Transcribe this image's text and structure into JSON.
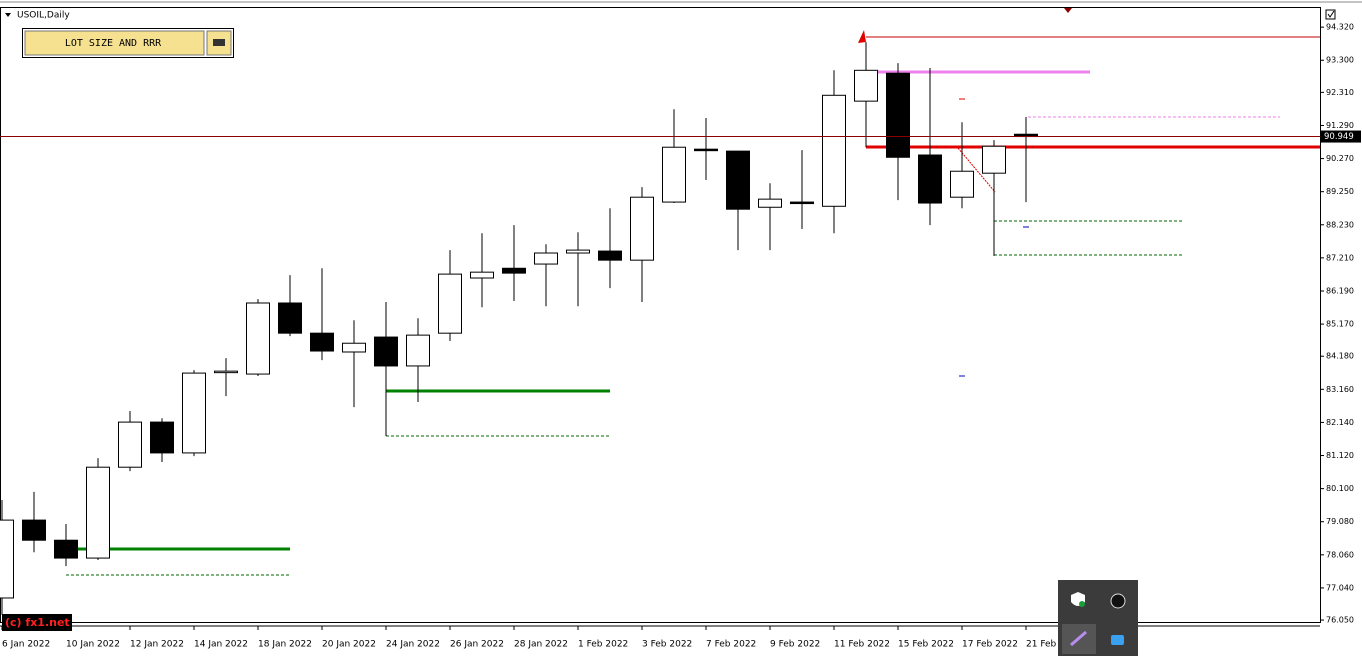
{
  "window": {
    "symbol_label": "USOIL,Daily",
    "button": "LOT SIZE AND RRR",
    "watermark": "(c) fx1.net"
  },
  "chart_data": {
    "type": "candlestick",
    "categories": [
      "6 Jan 2022",
      null,
      "10 Jan 2022",
      null,
      "12 Jan 2022",
      null,
      "14 Jan 2022",
      null,
      "18 Jan 2022",
      null,
      "20 Jan 2022",
      null,
      "24 Jan 2022",
      null,
      "26 Jan 2022",
      null,
      "28 Jan 2022",
      null,
      "1 Feb 2022",
      null,
      "3 Feb 2022",
      null,
      "7 Feb 2022",
      null,
      "9 Feb 2022",
      null,
      "11 Feb 2022",
      null,
      "15 Feb 2022",
      null,
      "17 Feb 2022",
      null,
      "21 Feb"
    ],
    "open": [
      76.73,
      79.13,
      78.51,
      77.96,
      80.76,
      82.15,
      81.2,
      83.69,
      83.63,
      85.82,
      84.89,
      84.31,
      84.77,
      83.88,
      84.89,
      86.59,
      86.89,
      87.02,
      87.36,
      87.42,
      87.14,
      88.93,
      90.56,
      90.5,
      88.77,
      88.93,
      88.8,
      92.04,
      92.9,
      90.38,
      89.08,
      89.82,
      91.02
    ],
    "high": [
      79.75,
      80.0,
      79.01,
      81.04,
      82.49,
      82.27,
      83.75,
      84.12,
      85.94,
      86.68,
      86.89,
      85.29,
      85.85,
      85.35,
      87.45,
      87.97,
      88.22,
      87.63,
      88.0,
      88.74,
      89.39,
      91.79,
      91.52,
      90.5,
      89.51,
      90.53,
      92.99,
      93.86,
      93.21,
      93.06,
      91.39,
      90.84,
      91.55
    ],
    "low": [
      76.21,
      78.14,
      77.71,
      77.9,
      80.64,
      80.92,
      81.1,
      82.95,
      83.57,
      84.8,
      84.06,
      82.61,
      81.72,
      82.77,
      84.65,
      85.69,
      85.88,
      85.72,
      85.72,
      86.28,
      85.85,
      88.9,
      89.61,
      87.45,
      87.45,
      88.1,
      87.97,
      90.62,
      88.99,
      88.22,
      88.74,
      87.27,
      88.93
    ],
    "close": [
      79.13,
      78.51,
      77.96,
      80.76,
      82.15,
      81.2,
      83.66,
      83.72,
      85.82,
      84.89,
      84.34,
      84.58,
      83.88,
      84.83,
      86.71,
      86.77,
      86.74,
      87.36,
      87.45,
      87.14,
      89.08,
      90.62,
      90.53,
      88.71,
      89.02,
      88.9,
      92.22,
      92.99,
      90.31,
      88.9,
      89.88,
      90.65,
      90.949
    ],
    "bull_color": "#ffffff",
    "bear_color": "#000000",
    "current_price": 90.949,
    "ylim": [
      75.99,
      94.91
    ],
    "yticks": [
      {
        "value": 94.32,
        "label": "94.320"
      },
      {
        "value": 93.3,
        "label": "93.300"
      },
      {
        "value": 92.31,
        "label": "92.310"
      },
      {
        "value": 91.29,
        "label": "91.290"
      },
      {
        "value": 90.27,
        "label": "90.270"
      },
      {
        "value": 89.25,
        "label": "89.250"
      },
      {
        "value": 88.23,
        "label": "88.230"
      },
      {
        "value": 87.21,
        "label": "87.210"
      },
      {
        "value": 86.19,
        "label": "86.190"
      },
      {
        "value": 85.17,
        "label": "85.170"
      },
      {
        "value": 84.18,
        "label": "84.180"
      },
      {
        "value": 83.16,
        "label": "83.160"
      },
      {
        "value": 82.14,
        "label": "82.140"
      },
      {
        "value": 81.12,
        "label": "81.120"
      },
      {
        "value": 80.1,
        "label": "80.100"
      },
      {
        "value": 79.08,
        "label": "79.080"
      },
      {
        "value": 78.06,
        "label": "78.060"
      },
      {
        "value": 77.04,
        "label": "77.040"
      },
      {
        "value": 76.05,
        "label": "76.050"
      }
    ],
    "grid": false
  }
}
